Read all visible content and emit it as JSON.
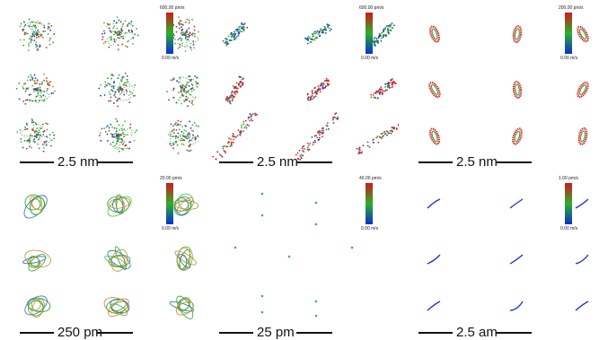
{
  "panels": [
    {
      "id": "p1",
      "colorbar_max": "600.00 pm/s",
      "colorbar_min": "0.00 m/s",
      "scale_label": "2.5 nm",
      "glyph_style": "dots",
      "colors": [
        "#2e9e2e",
        "#1a3fb5",
        "#d92626",
        "#48b848"
      ]
    },
    {
      "id": "p2",
      "colorbar_max": "600.00 pm/s",
      "colorbar_min": "0.00 m/s",
      "scale_label": "2.5 nm",
      "glyph_style": "streaks",
      "colors": [
        "#2e9e2e",
        "#1a3fb5",
        "#d92626",
        "#48b848"
      ]
    },
    {
      "id": "p3",
      "colorbar_max": "200.00 pm/s",
      "colorbar_min": "0.00 m/s",
      "scale_label": "2.5 nm",
      "glyph_style": "ovals",
      "colors": [
        "#d92626",
        "#2e9e2e",
        "#1a3fb5"
      ]
    },
    {
      "id": "p4",
      "colorbar_max": "20.00 pm/s",
      "colorbar_min": "0.00 m/s",
      "scale_label": "250 pm",
      "glyph_style": "loops",
      "colors": [
        "#2e9e2e",
        "#c8872a",
        "#1a6fb5",
        "#48b848"
      ]
    },
    {
      "id": "p5",
      "colorbar_max": "40.00 pm/s",
      "colorbar_min": "0.00 m/s",
      "scale_label": "25 pm",
      "glyph_style": "points",
      "colors": [
        "#3cb83c"
      ]
    },
    {
      "id": "p6",
      "colorbar_max": "1.00 pm/s",
      "colorbar_min": "0.00 m/s",
      "scale_label": "2.5 am",
      "glyph_style": "strokes",
      "colors": [
        "#1a2fd0"
      ]
    }
  ],
  "colorbar_gradient": [
    "#d01818",
    "#2bb02b",
    "#0a2fd0"
  ]
}
